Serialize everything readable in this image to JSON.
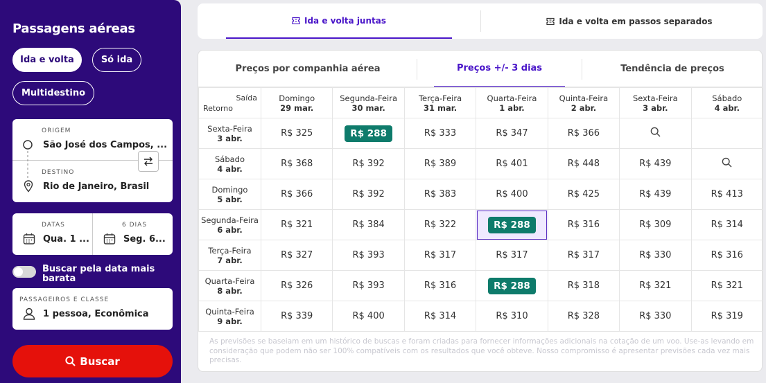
{
  "sidebar": {
    "title": "Passagens aéreas",
    "trip_types": [
      "Ida e volta",
      "Só ida",
      "Multidestino"
    ],
    "origin_label": "ORIGEM",
    "origin_value": "São José dos Campos, ...",
    "destination_label": "DESTINO",
    "destination_value": "Rio de Janeiro, Brasil",
    "dates_label": "DATAS",
    "dates_value": "Qua. 1 ...",
    "nights_label": "6 DIAS",
    "nights_value": "Seg. 6...",
    "cheapest_toggle_label": "Buscar pela data mais barata",
    "passengers_label": "PASSAGEIROS E CLASSE",
    "passengers_value": "1 pessoa, Econômica",
    "search_label": "Buscar"
  },
  "top_tabs": [
    "Ida e volta juntas",
    "Ida e volta em passos separados"
  ],
  "sub_tabs": [
    "Preços por companhia aérea",
    "Preços +/- 3 dias",
    "Tendência de preços"
  ],
  "grid": {
    "corner_top": "Saída",
    "corner_bottom": "Retorno",
    "columns": [
      {
        "day": "Domingo",
        "date": "29 mar."
      },
      {
        "day": "Segunda-Feira",
        "date": "30 mar."
      },
      {
        "day": "Terça-Feira",
        "date": "31 mar."
      },
      {
        "day": "Quarta-Feira",
        "date": "1 abr."
      },
      {
        "day": "Quinta-Feira",
        "date": "2 abr."
      },
      {
        "day": "Sexta-Feira",
        "date": "3 abr."
      },
      {
        "day": "Sábado",
        "date": "4 abr."
      }
    ],
    "rows": [
      {
        "day": "Sexta-Feira",
        "date": "3 abr.",
        "prices": [
          "R$ 325",
          "R$ 288",
          "R$ 333",
          "R$ 347",
          "R$ 366",
          "search",
          ""
        ]
      },
      {
        "day": "Sábado",
        "date": "4 abr.",
        "prices": [
          "R$ 368",
          "R$ 392",
          "R$ 389",
          "R$ 401",
          "R$ 448",
          "R$ 439",
          "search"
        ]
      },
      {
        "day": "Domingo",
        "date": "5 abr.",
        "prices": [
          "R$ 366",
          "R$ 392",
          "R$ 383",
          "R$ 400",
          "R$ 425",
          "R$ 439",
          "R$ 413"
        ]
      },
      {
        "day": "Segunda-Feira",
        "date": "6 abr.",
        "prices": [
          "R$ 321",
          "R$ 384",
          "R$ 322",
          "R$ 288",
          "R$ 316",
          "R$ 309",
          "R$ 314"
        ]
      },
      {
        "day": "Terça-Feira",
        "date": "7 abr.",
        "prices": [
          "R$ 327",
          "R$ 393",
          "R$ 317",
          "R$ 317",
          "R$ 317",
          "R$ 330",
          "R$ 316"
        ]
      },
      {
        "day": "Quarta-Feira",
        "date": "8 abr.",
        "prices": [
          "R$ 326",
          "R$ 393",
          "R$ 316",
          "R$ 288",
          "R$ 318",
          "R$ 321",
          "R$ 321"
        ]
      },
      {
        "day": "Quinta-Feira",
        "date": "9 abr.",
        "prices": [
          "R$ 339",
          "R$ 400",
          "R$ 314",
          "R$ 310",
          "R$ 328",
          "R$ 330",
          "R$ 319"
        ]
      }
    ],
    "cheapest": "R$ 288",
    "selected": {
      "row": 3,
      "col": 3
    }
  },
  "footnote": "As previsões se baseiam em um histórico de buscas e foram criadas para fornecer informações adicionais na cotação de um voo. Use-as levando em consideração que podem não ser 100% compatíveis com os resultados que você obteve. Nosso compromisso é apresentar previsões cada vez mais precisas.",
  "colors": {
    "sidebar": "#2d0a7a",
    "accent": "#4a16c9",
    "cheapest_badge": "#0e7b6b",
    "search_button": "#e5110b"
  }
}
